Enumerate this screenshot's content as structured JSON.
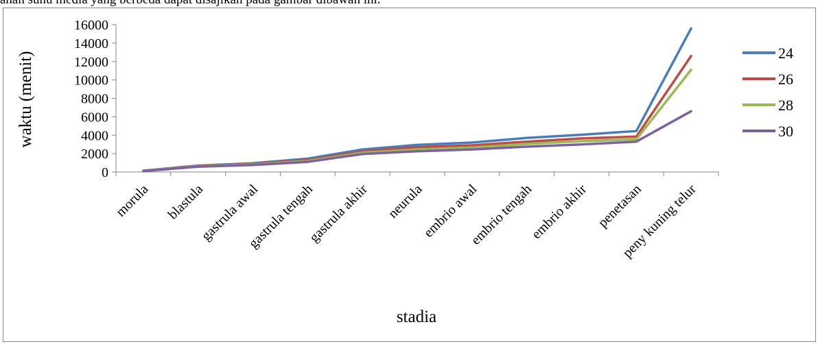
{
  "page": {
    "top_text": "ahan suhu media yang berbeda dapat disajikan pada gambar dibawah ini."
  },
  "chart_data": {
    "type": "line",
    "title": "",
    "xlabel": "stadia",
    "ylabel": "waktu (menit)",
    "ylim": [
      0,
      16000
    ],
    "yticks": [
      0,
      2000,
      4000,
      6000,
      8000,
      10000,
      12000,
      14000,
      16000
    ],
    "grid": false,
    "legend_position": "right",
    "categories": [
      "morula",
      "blastula",
      "gastrula awal",
      "gastrula tengah",
      "gastrula akhir",
      "neurula",
      "embrio awal",
      "embrio tengah",
      "embrio akhir",
      "penetasan",
      "peny kuning telur"
    ],
    "series": [
      {
        "name": "24",
        "color": "#4a7ebb",
        "values": [
          150,
          700,
          950,
          1450,
          2450,
          2950,
          3200,
          3700,
          4050,
          4450,
          15600
        ]
      },
      {
        "name": "26",
        "color": "#be4b48",
        "values": [
          130,
          660,
          880,
          1300,
          2250,
          2700,
          2900,
          3300,
          3650,
          3850,
          12600
        ]
      },
      {
        "name": "28",
        "color": "#98b954",
        "values": [
          120,
          620,
          820,
          1200,
          2100,
          2450,
          2650,
          3050,
          3350,
          3550,
          11100
        ]
      },
      {
        "name": "30",
        "color": "#7d60a0",
        "values": [
          100,
          580,
          760,
          1100,
          1950,
          2250,
          2450,
          2750,
          3000,
          3300,
          6600
        ]
      }
    ]
  }
}
